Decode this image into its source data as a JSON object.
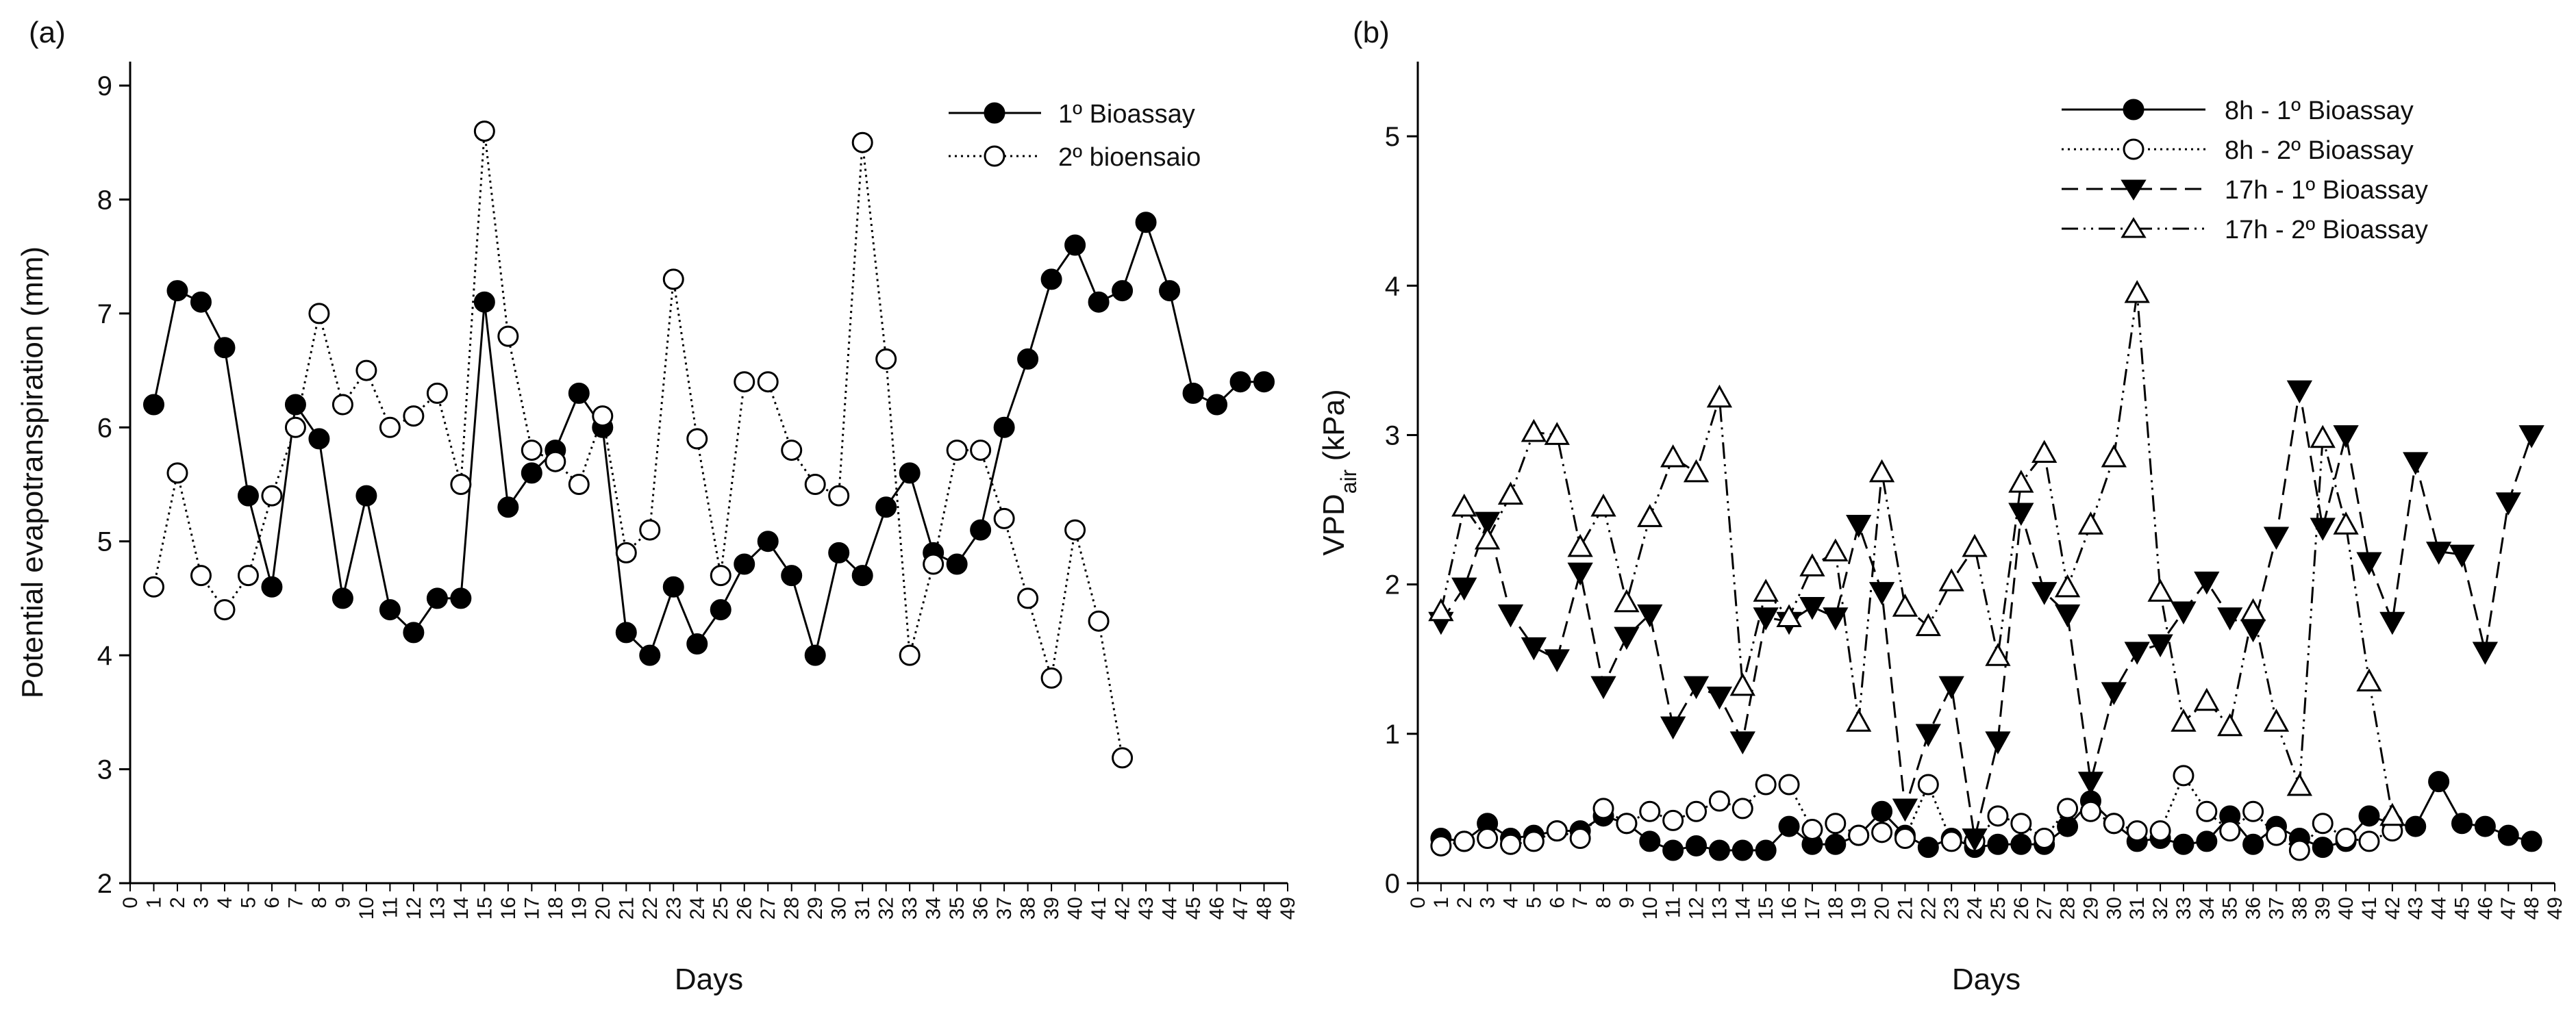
{
  "chart_data": [
    {
      "type": "line",
      "panel_label": "(a)",
      "title": "",
      "xlabel": "Days",
      "ylabel": "Potential evapotranspiration (mm)",
      "xlim": [
        0,
        49
      ],
      "ylim": [
        2,
        9
      ],
      "yticks": [
        "2",
        "3",
        "4",
        "5",
        "6",
        "7",
        "8",
        "9"
      ],
      "xticks": [
        "0",
        "1",
        "2",
        "3",
        "4",
        "5",
        "6",
        "7",
        "8",
        "9",
        "10",
        "11",
        "12",
        "13",
        "14",
        "15",
        "16",
        "17",
        "18",
        "19",
        "20",
        "21",
        "22",
        "23",
        "24",
        "25",
        "26",
        "27",
        "28",
        "29",
        "30",
        "31",
        "32",
        "33",
        "34",
        "35",
        "36",
        "37",
        "38",
        "39",
        "40",
        "41",
        "42",
        "43",
        "44",
        "45",
        "46",
        "47",
        "48",
        "49"
      ],
      "legend_position": "top-right",
      "series": [
        {
          "name": "1º Bioassay",
          "line": "solid",
          "marker": "filled-circle",
          "color": "#000000",
          "x": [
            1,
            2,
            3,
            4,
            5,
            6,
            7,
            8,
            9,
            10,
            11,
            12,
            13,
            14,
            15,
            16,
            17,
            18,
            19,
            20,
            21,
            22,
            23,
            24,
            25,
            26,
            27,
            28,
            29,
            30,
            31,
            32,
            33,
            34,
            35,
            36,
            37,
            38,
            39,
            40,
            41,
            42,
            43,
            44,
            45,
            46,
            47,
            48
          ],
          "values": [
            6.2,
            7.2,
            7.1,
            6.7,
            5.4,
            4.6,
            6.2,
            5.9,
            4.5,
            5.4,
            4.4,
            4.2,
            4.5,
            4.5,
            7.1,
            5.3,
            5.6,
            5.8,
            6.3,
            6.0,
            4.2,
            4.0,
            4.6,
            4.1,
            4.4,
            4.8,
            5.0,
            4.7,
            4.0,
            4.9,
            4.7,
            5.3,
            5.6,
            4.9,
            4.8,
            5.1,
            6.0,
            6.6,
            7.3,
            7.6,
            7.1,
            7.2,
            7.8,
            7.2,
            6.3,
            6.2,
            6.4,
            6.4
          ]
        },
        {
          "name": "2º bioensaio",
          "line": "dotted",
          "marker": "open-circle",
          "color": "#000000",
          "x": [
            1,
            2,
            3,
            4,
            5,
            6,
            7,
            8,
            9,
            10,
            11,
            12,
            13,
            14,
            15,
            16,
            17,
            18,
            19,
            20,
            21,
            22,
            23,
            24,
            25,
            26,
            27,
            28,
            29,
            30,
            31,
            32,
            33,
            34,
            35,
            36,
            37,
            38,
            39,
            40,
            41,
            42
          ],
          "values": [
            4.6,
            5.6,
            4.7,
            4.4,
            4.7,
            5.4,
            6.0,
            7.0,
            6.2,
            6.5,
            6.0,
            6.1,
            6.3,
            5.5,
            8.6,
            6.8,
            5.8,
            5.7,
            5.5,
            6.1,
            4.9,
            5.1,
            7.3,
            5.9,
            4.7,
            6.4,
            6.4,
            5.8,
            5.5,
            5.4,
            8.5,
            6.6,
            4.0,
            4.8,
            5.8,
            5.8,
            5.2,
            4.5,
            3.8,
            5.1,
            4.3,
            3.1
          ]
        }
      ]
    },
    {
      "type": "line",
      "panel_label": "(b)",
      "title": "",
      "xlabel": "Days",
      "ylabel_main": "VPD",
      "ylabel_sub": "air",
      "ylabel_unit": " (kPa)",
      "xlim": [
        0,
        49
      ],
      "ylim": [
        0,
        5.5
      ],
      "yticks": [
        "0",
        "1",
        "2",
        "3",
        "4",
        "5"
      ],
      "xticks": [
        "0",
        "1",
        "2",
        "3",
        "4",
        "5",
        "6",
        "7",
        "8",
        "9",
        "10",
        "11",
        "12",
        "13",
        "14",
        "15",
        "16",
        "17",
        "18",
        "19",
        "20",
        "21",
        "22",
        "23",
        "24",
        "25",
        "26",
        "27",
        "28",
        "29",
        "30",
        "31",
        "32",
        "33",
        "34",
        "35",
        "36",
        "37",
        "38",
        "39",
        "40",
        "41",
        "42",
        "43",
        "44",
        "45",
        "46",
        "47",
        "48",
        "49"
      ],
      "legend_position": "top-right",
      "series": [
        {
          "name": "8h - 1º Bioassay",
          "line": "solid",
          "marker": "filled-circle",
          "color": "#000000",
          "x": [
            1,
            2,
            3,
            4,
            5,
            6,
            7,
            8,
            9,
            10,
            11,
            12,
            13,
            14,
            15,
            16,
            17,
            18,
            19,
            20,
            21,
            22,
            23,
            24,
            25,
            26,
            27,
            28,
            29,
            30,
            31,
            32,
            33,
            34,
            35,
            36,
            37,
            38,
            39,
            40,
            41,
            42,
            43,
            44,
            45,
            46,
            47,
            48
          ],
          "values": [
            0.3,
            0.28,
            0.4,
            0.3,
            0.32,
            0.35,
            0.35,
            0.45,
            0.4,
            0.28,
            0.22,
            0.25,
            0.22,
            0.22,
            0.22,
            0.38,
            0.26,
            0.26,
            0.32,
            0.48,
            0.32,
            0.24,
            0.3,
            0.24,
            0.26,
            0.26,
            0.26,
            0.38,
            0.55,
            0.4,
            0.28,
            0.3,
            0.26,
            0.28,
            0.45,
            0.26,
            0.38,
            0.3,
            0.24,
            0.28,
            0.45,
            0.4,
            0.38,
            0.68,
            0.4,
            0.38,
            0.32,
            0.28
          ]
        },
        {
          "name": "8h - 2º Bioassay",
          "line": "dotted",
          "marker": "open-circle",
          "color": "#000000",
          "x": [
            1,
            2,
            3,
            4,
            5,
            6,
            7,
            8,
            9,
            10,
            11,
            12,
            13,
            14,
            15,
            16,
            17,
            18,
            19,
            20,
            21,
            22,
            23,
            24,
            25,
            26,
            27,
            28,
            29,
            30,
            31,
            32,
            33,
            34,
            35,
            36,
            37,
            38,
            39,
            40,
            41,
            42
          ],
          "values": [
            0.25,
            0.28,
            0.3,
            0.26,
            0.28,
            0.35,
            0.3,
            0.5,
            0.4,
            0.48,
            0.42,
            0.48,
            0.55,
            0.5,
            0.66,
            0.66,
            0.36,
            0.4,
            0.32,
            0.34,
            0.3,
            0.66,
            0.28,
            0.28,
            0.45,
            0.4,
            0.3,
            0.5,
            0.48,
            0.4,
            0.35,
            0.35,
            0.72,
            0.48,
            0.35,
            0.48,
            0.32,
            0.22,
            0.4,
            0.3,
            0.28,
            0.35
          ]
        },
        {
          "name": "17h - 1º Bioassay",
          "line": "dashed",
          "marker": "filled-triangle-down",
          "color": "#000000",
          "x": [
            1,
            2,
            3,
            4,
            5,
            6,
            7,
            8,
            9,
            10,
            11,
            12,
            13,
            14,
            15,
            16,
            17,
            18,
            19,
            20,
            21,
            22,
            23,
            24,
            25,
            26,
            27,
            28,
            29,
            30,
            31,
            32,
            33,
            34,
            35,
            36,
            37,
            38,
            39,
            40,
            41,
            42,
            43,
            44,
            45,
            46,
            47,
            48
          ],
          "values": [
            1.75,
            1.98,
            2.42,
            1.8,
            1.58,
            1.5,
            2.08,
            1.32,
            1.65,
            1.8,
            1.05,
            1.32,
            1.25,
            0.95,
            1.78,
            1.75,
            1.85,
            1.78,
            2.4,
            1.95,
            0.5,
            1.0,
            1.32,
            0.3,
            0.95,
            2.48,
            1.95,
            1.8,
            0.68,
            1.28,
            1.55,
            1.6,
            1.82,
            2.02,
            1.78,
            1.7,
            2.32,
            3.3,
            2.38,
            3.0,
            2.15,
            1.75,
            2.82,
            2.22,
            2.2,
            1.55,
            2.55,
            3.0
          ]
        },
        {
          "name": "17h - 2º Bioassay",
          "line": "dash-dot-dot",
          "marker": "open-triangle-up",
          "color": "#000000",
          "x": [
            1,
            2,
            3,
            4,
            5,
            6,
            7,
            8,
            9,
            10,
            11,
            12,
            13,
            14,
            15,
            16,
            17,
            18,
            19,
            20,
            21,
            22,
            23,
            24,
            25,
            26,
            27,
            28,
            29,
            30,
            31,
            32,
            33,
            34,
            35,
            36,
            37,
            38,
            39,
            40,
            41,
            42
          ],
          "values": [
            1.82,
            2.52,
            2.3,
            2.6,
            3.02,
            3.0,
            2.25,
            2.52,
            1.88,
            2.45,
            2.85,
            2.75,
            3.25,
            1.32,
            1.95,
            1.78,
            2.12,
            2.22,
            1.08,
            2.75,
            1.85,
            1.72,
            2.02,
            2.25,
            1.52,
            2.68,
            2.88,
            1.98,
            2.4,
            2.85,
            3.95,
            1.95,
            1.08,
            1.22,
            1.05,
            1.82,
            1.08,
            0.65,
            2.98,
            2.4,
            1.35,
            0.45
          ]
        }
      ]
    }
  ]
}
